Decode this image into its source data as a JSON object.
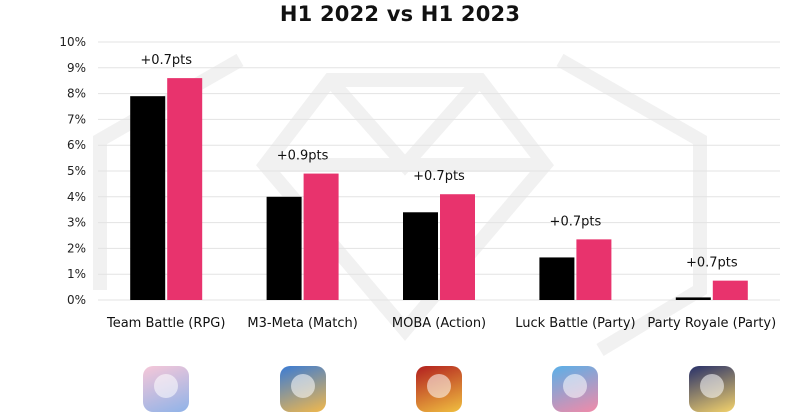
{
  "chart_data": {
    "type": "bar",
    "title": "H1 2022 vs H1 2023",
    "categories": [
      "Team Battle (RPG)",
      "M3-Meta (Match)",
      "MOBA (Action)",
      "Luck Battle (Party)",
      "Party Royale (Party)"
    ],
    "series": [
      {
        "name": "",
        "color": "#000000",
        "values": [
          7.9,
          4.0,
          3.4,
          1.65,
          0.1
        ]
      },
      {
        "name": "",
        "color": "#e8336d",
        "values": [
          8.6,
          4.9,
          4.1,
          2.35,
          0.75
        ]
      }
    ],
    "data_labels": [
      "+0.7pts",
      "+0.9pts",
      "+0.7pts",
      "+0.7pts",
      "+0.7pts"
    ],
    "y_ticks": [
      "0%",
      "1%",
      "2%",
      "3%",
      "4%",
      "5%",
      "6%",
      "7%",
      "8%",
      "9%",
      "10%"
    ],
    "ylim": [
      0,
      10
    ],
    "grid": true,
    "legend": "none",
    "xlabel": "",
    "ylabel": ""
  },
  "game_icons": [
    {
      "category": "Team Battle (RPG)",
      "icon": "anime-character-icon",
      "colors": [
        "#f6c7d8",
        "#8fb3e8"
      ]
    },
    {
      "category": "M3-Meta (Match)",
      "icon": "bearded-character-icon",
      "colors": [
        "#3a7bd5",
        "#f2b84b"
      ]
    },
    {
      "category": "MOBA (Action)",
      "icon": "warrior-5v5-icon",
      "colors": [
        "#b21f1f",
        "#f0c040"
      ]
    },
    {
      "category": "Luck Battle (Party)",
      "icon": "pig-coin-icon",
      "colors": [
        "#5ab0e8",
        "#f28aa8"
      ]
    },
    {
      "category": "Party Royale (Party)",
      "icon": "cartoon-creature-icon",
      "colors": [
        "#27306a",
        "#f4d36b"
      ]
    }
  ]
}
